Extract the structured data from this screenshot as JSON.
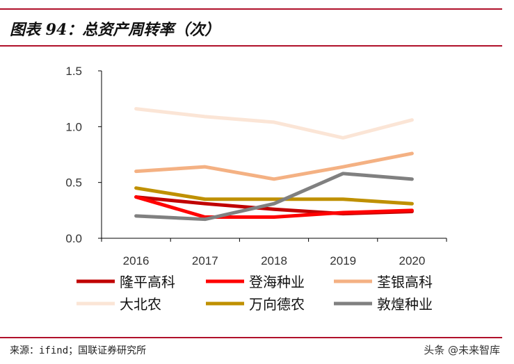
{
  "title": "图表 94：总资产周转率（次）",
  "source": "来源：ifind；国联证券研究所",
  "watermark": "头条 @未来智库",
  "chart_data": {
    "type": "line",
    "title": "图表 94：总资产周转率（次）",
    "categories": [
      "2016",
      "2017",
      "2018",
      "2019",
      "2020"
    ],
    "ylim": [
      0,
      1.5
    ],
    "yticks": [
      "0.0",
      "0.5",
      "1.0",
      "1.5"
    ],
    "grid": false,
    "legend": "bottom",
    "series": [
      {
        "name": "隆平高科",
        "color": "#c00000",
        "values": [
          0.37,
          0.31,
          0.26,
          0.22,
          0.24
        ]
      },
      {
        "name": "登海种业",
        "color": "#ff0000",
        "values": [
          0.37,
          0.19,
          0.19,
          0.23,
          0.25
        ]
      },
      {
        "name": "荃银高科",
        "color": "#f4b183",
        "values": [
          0.6,
          0.64,
          0.53,
          0.64,
          0.76
        ]
      },
      {
        "name": "大北农",
        "color": "#fbe5d6",
        "values": [
          1.16,
          1.09,
          1.04,
          0.9,
          1.06
        ]
      },
      {
        "name": "万向德农",
        "color": "#bf9000",
        "values": [
          0.45,
          0.35,
          0.35,
          0.35,
          0.31
        ]
      },
      {
        "name": "敦煌种业",
        "color": "#808080",
        "values": [
          0.2,
          0.17,
          0.31,
          0.58,
          0.53
        ]
      }
    ]
  }
}
